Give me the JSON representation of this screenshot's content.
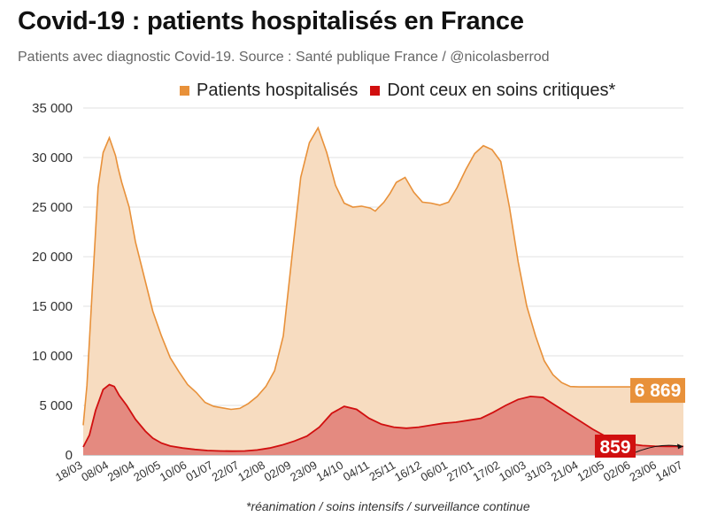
{
  "header": {
    "title": "Covid-19 : patients hospitalisés en France",
    "subtitle": "Patients avec diagnostic Covid-19. Source : Santé publique France / @nicolasberrod"
  },
  "footnote": "*réanimation / soins intensifs / surveillance continue",
  "colors": {
    "hospitalized_line": "#e8913a",
    "hospitalized_fill": "#f7dcc0",
    "critical_line": "#d10f0f",
    "critical_fill": "#e48a80",
    "grid": "#e0e0e0"
  },
  "chart_data": {
    "type": "area",
    "title": "Covid-19 : patients hospitalisés en France",
    "xlabel": "",
    "ylabel": "",
    "ylim": [
      0,
      35000
    ],
    "y_ticks": [
      "35 000",
      "30 000",
      "25 000",
      "20 000",
      "15 000",
      "10 000",
      "5 000",
      "0"
    ],
    "y_tick_values": [
      35000,
      30000,
      25000,
      20000,
      15000,
      10000,
      5000,
      0
    ],
    "x_tick_labels": [
      "18/03",
      "08/04",
      "29/04",
      "20/05",
      "10/06",
      "01/07",
      "22/07",
      "12/08",
      "02/09",
      "23/09",
      "14/10",
      "04/11",
      "25/11",
      "16/12",
      "06/01",
      "27/01",
      "17/02",
      "10/03",
      "31/03",
      "21/04",
      "12/05",
      "02/06",
      "23/06",
      "14/07"
    ],
    "x_unit": "days since 18/03",
    "legend": [
      "Patients hospitalisés",
      "Dont ceux en soins critiques*"
    ],
    "series": [
      {
        "name": "Patients hospitalisés",
        "x": [
          0,
          3,
          7,
          12,
          16,
          21,
          26,
          28,
          31,
          37,
          42,
          50,
          56,
          63,
          70,
          77,
          84,
          91,
          98,
          105,
          112,
          119,
          126,
          133,
          140,
          147,
          154,
          161,
          168,
          175,
          182,
          189,
          196,
          203,
          210,
          217,
          224,
          231,
          235,
          238,
          242,
          247,
          252,
          259,
          266,
          273,
          280,
          287,
          294,
          301,
          308,
          315,
          322,
          329,
          336,
          343,
          350,
          357,
          364,
          371,
          378,
          385,
          392,
          399,
          406,
          413,
          420,
          427,
          434,
          441,
          448,
          455,
          462,
          469,
          476,
          483
        ],
        "values": [
          3000,
          7000,
          16000,
          27000,
          30500,
          32000,
          30200,
          29000,
          27500,
          25000,
          21500,
          17500,
          14500,
          12000,
          9800,
          8400,
          7100,
          6300,
          5300,
          4900,
          4750,
          4600,
          4700,
          5200,
          5900,
          6900,
          8500,
          12000,
          20000,
          28000,
          31500,
          33000,
          30500,
          27200,
          25400,
          25000,
          25100,
          24900,
          24600,
          25000,
          25500,
          26400,
          27500,
          28000,
          26500,
          25500,
          25400,
          25200,
          25500,
          27000,
          28800,
          30400,
          31200,
          30800,
          29600,
          25000,
          19500,
          15000,
          12000,
          9500,
          8100,
          7300,
          6900,
          6869,
          6869,
          6869,
          6869,
          6869,
          6869,
          6869,
          6869,
          6869,
          6869,
          6869,
          6869,
          6869
        ]
      },
      {
        "name": "Dont ceux en soins critiques*",
        "x": [
          0,
          5,
          10,
          16,
          21,
          25,
          29,
          35,
          42,
          50,
          56,
          63,
          70,
          80,
          90,
          100,
          110,
          120,
          130,
          140,
          150,
          160,
          170,
          180,
          190,
          200,
          210,
          220,
          230,
          240,
          250,
          260,
          270,
          280,
          290,
          300,
          310,
          320,
          330,
          340,
          350,
          360,
          370,
          380,
          390,
          400,
          410,
          420,
          430,
          440,
          450,
          460,
          470,
          483
        ],
        "values": [
          800,
          2000,
          4500,
          6600,
          7100,
          6900,
          6000,
          5000,
          3600,
          2400,
          1700,
          1200,
          900,
          700,
          550,
          450,
          400,
          380,
          400,
          500,
          700,
          1000,
          1400,
          1900,
          2800,
          4200,
          4900,
          4600,
          3700,
          3100,
          2800,
          2700,
          2800,
          3000,
          3200,
          3300,
          3500,
          3700,
          4300,
          5000,
          5600,
          5900,
          5800,
          5000,
          4200,
          3400,
          2600,
          1900,
          1400,
          1100,
          950,
          880,
          860,
          859
        ]
      }
    ],
    "x_max": 483,
    "last_hospitalized_label": "6 869",
    "last_critical_label": "859"
  }
}
